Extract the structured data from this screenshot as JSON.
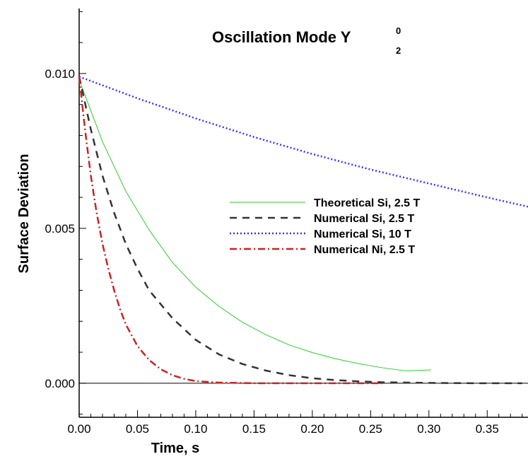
{
  "chart_data": {
    "type": "line",
    "title": {
      "main": "Oscillation Mode Y",
      "superscript": "0",
      "subscript": "2"
    },
    "xlabel": "Time, s",
    "ylabel": "Surface Deviation",
    "xlim": [
      0.0,
      0.385
    ],
    "ylim": [
      -0.0011,
      0.0121
    ],
    "xticks": [
      0.0,
      0.05,
      0.1,
      0.15,
      0.2,
      0.25,
      0.3,
      0.35
    ],
    "xtick_labels": [
      "0.00",
      "0.05",
      "0.10",
      "0.15",
      "0.20",
      "0.25",
      "0.30",
      "0.35"
    ],
    "yticks": [
      0.0,
      0.005,
      0.01
    ],
    "ytick_labels": [
      "0.000",
      "0.005",
      "0.010"
    ],
    "grid": false,
    "legend_position": "middle-right",
    "series": [
      {
        "name": "Theoretical Si, 2.5 T",
        "color": "#2ecc2e",
        "style": "solid",
        "x": [
          0.0,
          0.02,
          0.04,
          0.06,
          0.08,
          0.1,
          0.12,
          0.14,
          0.16,
          0.18,
          0.2,
          0.22,
          0.24,
          0.26,
          0.28,
          0.302
        ],
        "y": [
          0.0098,
          0.0078,
          0.0062,
          0.00495,
          0.0039,
          0.0031,
          0.00248,
          0.00197,
          0.00157,
          0.00124,
          0.00099,
          0.00079,
          0.00063,
          0.0005,
          0.0004,
          0.00043
        ]
      },
      {
        "name": "Numerical Si, 2.5 T",
        "color": "#333333",
        "style": "dashed",
        "x": [
          0.0,
          0.01,
          0.02,
          0.03,
          0.04,
          0.05,
          0.06,
          0.08,
          0.1,
          0.12,
          0.14,
          0.16,
          0.18,
          0.2,
          0.22,
          0.24,
          0.26,
          0.3,
          0.34,
          0.38
        ],
        "y": [
          0.0099,
          0.0082,
          0.0067,
          0.0055,
          0.0045,
          0.0037,
          0.003,
          0.0021,
          0.0014,
          0.00093,
          0.00062,
          0.00041,
          0.00026,
          0.00016,
          0.0001,
          6e-05,
          3e-05,
          1e-05,
          0.0,
          0.0
        ]
      },
      {
        "name": "Numerical Si, 10 T",
        "color": "#3333ff",
        "style": "dotted",
        "x": [
          0.0,
          0.05,
          0.1,
          0.15,
          0.2,
          0.25,
          0.3,
          0.35,
          0.385
        ],
        "y": [
          0.0099,
          0.0092,
          0.00855,
          0.00795,
          0.0074,
          0.0069,
          0.00645,
          0.006,
          0.0057
        ]
      },
      {
        "name": "Numerical Ni, 2.5 T",
        "color": "#cc2222",
        "style": "dashdot",
        "x": [
          0.0,
          0.005,
          0.01,
          0.015,
          0.02,
          0.025,
          0.03,
          0.035,
          0.04,
          0.05,
          0.06,
          0.07,
          0.08,
          0.09,
          0.1,
          0.12,
          0.15,
          0.2,
          0.26
        ],
        "y": [
          0.0099,
          0.0082,
          0.0067,
          0.0055,
          0.0045,
          0.0037,
          0.003,
          0.0024,
          0.0019,
          0.0012,
          0.00075,
          0.00045,
          0.00026,
          0.00014,
          7e-05,
          2e-05,
          0.0,
          0.0,
          0.0
        ]
      }
    ]
  }
}
